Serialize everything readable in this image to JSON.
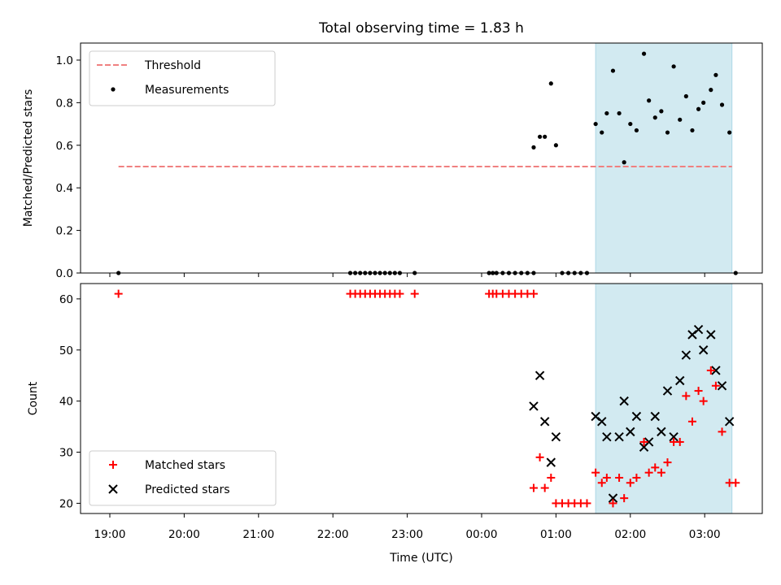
{
  "chart_data": {
    "type": "scatter",
    "title": "Total observing time = 1.83 h",
    "xlabel": "Time (UTC)",
    "x_ticks": [
      "19:00",
      "20:00",
      "21:00",
      "22:00",
      "23:00",
      "00:00",
      "01:00",
      "02:00",
      "03:00"
    ],
    "colors": {
      "threshold": "#f08080",
      "measurement": "#000000",
      "matched": "#ff0000",
      "predicted": "#000000",
      "highlight": "#add8e6"
    },
    "highlight_span": [
      "01:32",
      "03:22"
    ],
    "panels": [
      {
        "id": "ratio",
        "ylabel": "Matched/Predicted stars",
        "ylim": [
          0,
          1.08
        ],
        "yticks": [
          "0.0",
          "0.2",
          "0.4",
          "0.6",
          "0.8",
          "1.0"
        ],
        "legend_position": "upper-left",
        "legend": [
          {
            "label": "Threshold",
            "marker": "dashed-line"
          },
          {
            "label": "Measurements",
            "marker": "dot"
          }
        ],
        "threshold": {
          "value": 0.5,
          "x_range": [
            "19:07",
            "03:22"
          ]
        },
        "measurements": [
          [
            "19:07",
            0
          ],
          [
            "22:14",
            0
          ],
          [
            "22:18",
            0
          ],
          [
            "22:22",
            0
          ],
          [
            "22:26",
            0
          ],
          [
            "22:30",
            0
          ],
          [
            "22:34",
            0
          ],
          [
            "22:38",
            0
          ],
          [
            "22:42",
            0
          ],
          [
            "22:46",
            0
          ],
          [
            "22:50",
            0
          ],
          [
            "22:54",
            0
          ],
          [
            "23:06",
            0
          ],
          [
            "00:06",
            0
          ],
          [
            "00:09",
            0
          ],
          [
            "00:12",
            0
          ],
          [
            "00:17",
            0
          ],
          [
            "00:22",
            0
          ],
          [
            "00:27",
            0
          ],
          [
            "00:32",
            0
          ],
          [
            "00:37",
            0
          ],
          [
            "00:42",
            0
          ],
          [
            "00:42",
            0.59
          ],
          [
            "00:47",
            0.64
          ],
          [
            "00:51",
            0.64
          ],
          [
            "00:56",
            0.89
          ],
          [
            "01:00",
            0.6
          ],
          [
            "01:05",
            0
          ],
          [
            "01:10",
            0
          ],
          [
            "01:15",
            0
          ],
          [
            "01:20",
            0
          ],
          [
            "01:25",
            0
          ],
          [
            "01:32",
            0.7
          ],
          [
            "01:37",
            0.66
          ],
          [
            "01:41",
            0.75
          ],
          [
            "01:46",
            0.95
          ],
          [
            "01:51",
            0.75
          ],
          [
            "01:55",
            0.52
          ],
          [
            "02:00",
            0.7
          ],
          [
            "02:05",
            0.67
          ],
          [
            "02:11",
            1.03
          ],
          [
            "02:15",
            0.81
          ],
          [
            "02:20",
            0.73
          ],
          [
            "02:25",
            0.76
          ],
          [
            "02:30",
            0.66
          ],
          [
            "02:35",
            0.97
          ],
          [
            "02:40",
            0.72
          ],
          [
            "02:45",
            0.83
          ],
          [
            "02:50",
            0.67
          ],
          [
            "02:55",
            0.77
          ],
          [
            "02:59",
            0.8
          ],
          [
            "03:05",
            0.86
          ],
          [
            "03:09",
            0.93
          ],
          [
            "03:14",
            0.79
          ],
          [
            "03:20",
            0.66
          ],
          [
            "03:25",
            0
          ]
        ]
      },
      {
        "id": "count",
        "ylabel": "Count",
        "ylim": [
          18,
          63
        ],
        "yticks": [
          "20",
          "30",
          "40",
          "50",
          "60"
        ],
        "legend_position": "lower-left",
        "legend": [
          {
            "label": "Matched stars",
            "marker": "plus"
          },
          {
            "label": "Predicted stars",
            "marker": "x"
          }
        ],
        "matched": [
          [
            "19:07",
            61
          ],
          [
            "22:14",
            61
          ],
          [
            "22:18",
            61
          ],
          [
            "22:22",
            61
          ],
          [
            "22:26",
            61
          ],
          [
            "22:30",
            61
          ],
          [
            "22:34",
            61
          ],
          [
            "22:38",
            61
          ],
          [
            "22:42",
            61
          ],
          [
            "22:46",
            61
          ],
          [
            "22:50",
            61
          ],
          [
            "22:54",
            61
          ],
          [
            "23:06",
            61
          ],
          [
            "00:06",
            61
          ],
          [
            "00:09",
            61
          ],
          [
            "00:12",
            61
          ],
          [
            "00:17",
            61
          ],
          [
            "00:22",
            61
          ],
          [
            "00:27",
            61
          ],
          [
            "00:32",
            61
          ],
          [
            "00:37",
            61
          ],
          [
            "00:42",
            61
          ],
          [
            "00:42",
            23
          ],
          [
            "00:47",
            29
          ],
          [
            "00:51",
            23
          ],
          [
            "00:56",
            25
          ],
          [
            "01:00",
            20
          ],
          [
            "01:05",
            20
          ],
          [
            "01:10",
            20
          ],
          [
            "01:15",
            20
          ],
          [
            "01:20",
            20
          ],
          [
            "01:25",
            20
          ],
          [
            "01:32",
            26
          ],
          [
            "01:37",
            24
          ],
          [
            "01:41",
            25
          ],
          [
            "01:46",
            20
          ],
          [
            "01:51",
            25
          ],
          [
            "01:55",
            21
          ],
          [
            "02:00",
            24
          ],
          [
            "02:05",
            25
          ],
          [
            "02:11",
            32
          ],
          [
            "02:15",
            26
          ],
          [
            "02:20",
            27
          ],
          [
            "02:25",
            26
          ],
          [
            "02:30",
            28
          ],
          [
            "02:35",
            32
          ],
          [
            "02:40",
            32
          ],
          [
            "02:45",
            41
          ],
          [
            "02:50",
            36
          ],
          [
            "02:55",
            42
          ],
          [
            "02:59",
            40
          ],
          [
            "03:05",
            46
          ],
          [
            "03:09",
            43
          ],
          [
            "03:14",
            34
          ],
          [
            "03:20",
            24
          ],
          [
            "03:25",
            24
          ]
        ],
        "predicted": [
          [
            "00:42",
            39
          ],
          [
            "00:47",
            45
          ],
          [
            "00:51",
            36
          ],
          [
            "00:56",
            28
          ],
          [
            "01:00",
            33
          ],
          [
            "01:32",
            37
          ],
          [
            "01:37",
            36
          ],
          [
            "01:41",
            33
          ],
          [
            "01:46",
            21
          ],
          [
            "01:51",
            33
          ],
          [
            "01:55",
            40
          ],
          [
            "02:00",
            34
          ],
          [
            "02:05",
            37
          ],
          [
            "02:11",
            31
          ],
          [
            "02:15",
            32
          ],
          [
            "02:20",
            37
          ],
          [
            "02:25",
            34
          ],
          [
            "02:30",
            42
          ],
          [
            "02:35",
            33
          ],
          [
            "02:40",
            44
          ],
          [
            "02:45",
            49
          ],
          [
            "02:50",
            53
          ],
          [
            "02:55",
            54
          ],
          [
            "02:59",
            50
          ],
          [
            "03:05",
            53
          ],
          [
            "03:09",
            46
          ],
          [
            "03:14",
            43
          ],
          [
            "03:20",
            36
          ]
        ]
      }
    ]
  }
}
